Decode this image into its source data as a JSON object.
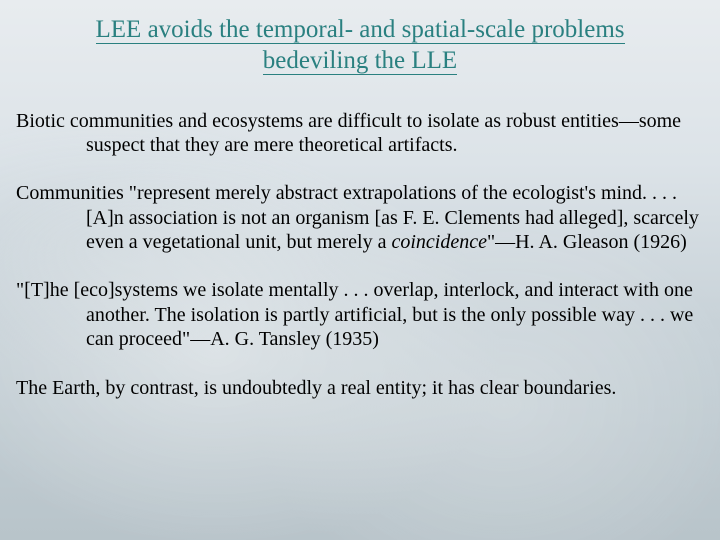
{
  "colors": {
    "title_color": "#2a8080",
    "body_color": "#000000",
    "bg_top": "#e8ecef",
    "bg_bottom": "#b8c4ca"
  },
  "fonts": {
    "title_size_pt": 25,
    "body_size_pt": 20,
    "family": "Times New Roman"
  },
  "title_line1": "LEE avoids the temporal- and spatial-scale problems",
  "title_line2": "bedeviling the LLE",
  "p1": "Biotic communities and ecosystems are difficult to isolate as robust entities—some suspect that they are mere theoretical artifacts.",
  "p2_a": "Communities \"represent merely abstract extrapolations of the ecologist's mind. . . .  [A]n association is not an organism [as F. E. Clements had alleged], scarcely even a vegetational unit, but merely a ",
  "p2_i": "coincidence",
  "p2_b": "\"—H. A. Gleason (1926)",
  "p3": "\"[T]he [eco]systems we isolate mentally . . . overlap, interlock, and interact with one another.  The isolation is partly artificial, but is the only possible way . . . we can proceed\"—A. G. Tansley (1935)",
  "p4": "The Earth, by contrast, is undoubtedly a real entity; it has clear boundaries."
}
